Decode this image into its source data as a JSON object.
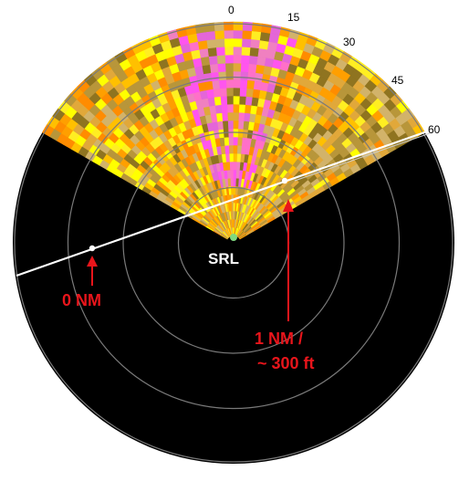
{
  "center_label": "SRL",
  "azimuth_ticks": [
    "0",
    "15",
    "30",
    "45",
    "60"
  ],
  "annotations": {
    "zero": "0 NM",
    "one_line1": "1 NM /",
    "one_line2": "~ 300 ft"
  },
  "sector": {
    "from_deg": -60,
    "to_deg": 60,
    "range_rings": 4
  },
  "colors": {
    "background": "#000000",
    "ring": "#7a7a7a",
    "beam_line": "#ffffff",
    "annotation": "#e8151b",
    "palette": [
      "#ffff00",
      "#ffee22",
      "#ffc000",
      "#ff9f00",
      "#ff8c00",
      "#e1a83a",
      "#d2b36a",
      "#b8963a",
      "#8f7420",
      "#f080c0",
      "#ff70c8",
      "#ff55ee",
      "#e466d8"
    ]
  }
}
